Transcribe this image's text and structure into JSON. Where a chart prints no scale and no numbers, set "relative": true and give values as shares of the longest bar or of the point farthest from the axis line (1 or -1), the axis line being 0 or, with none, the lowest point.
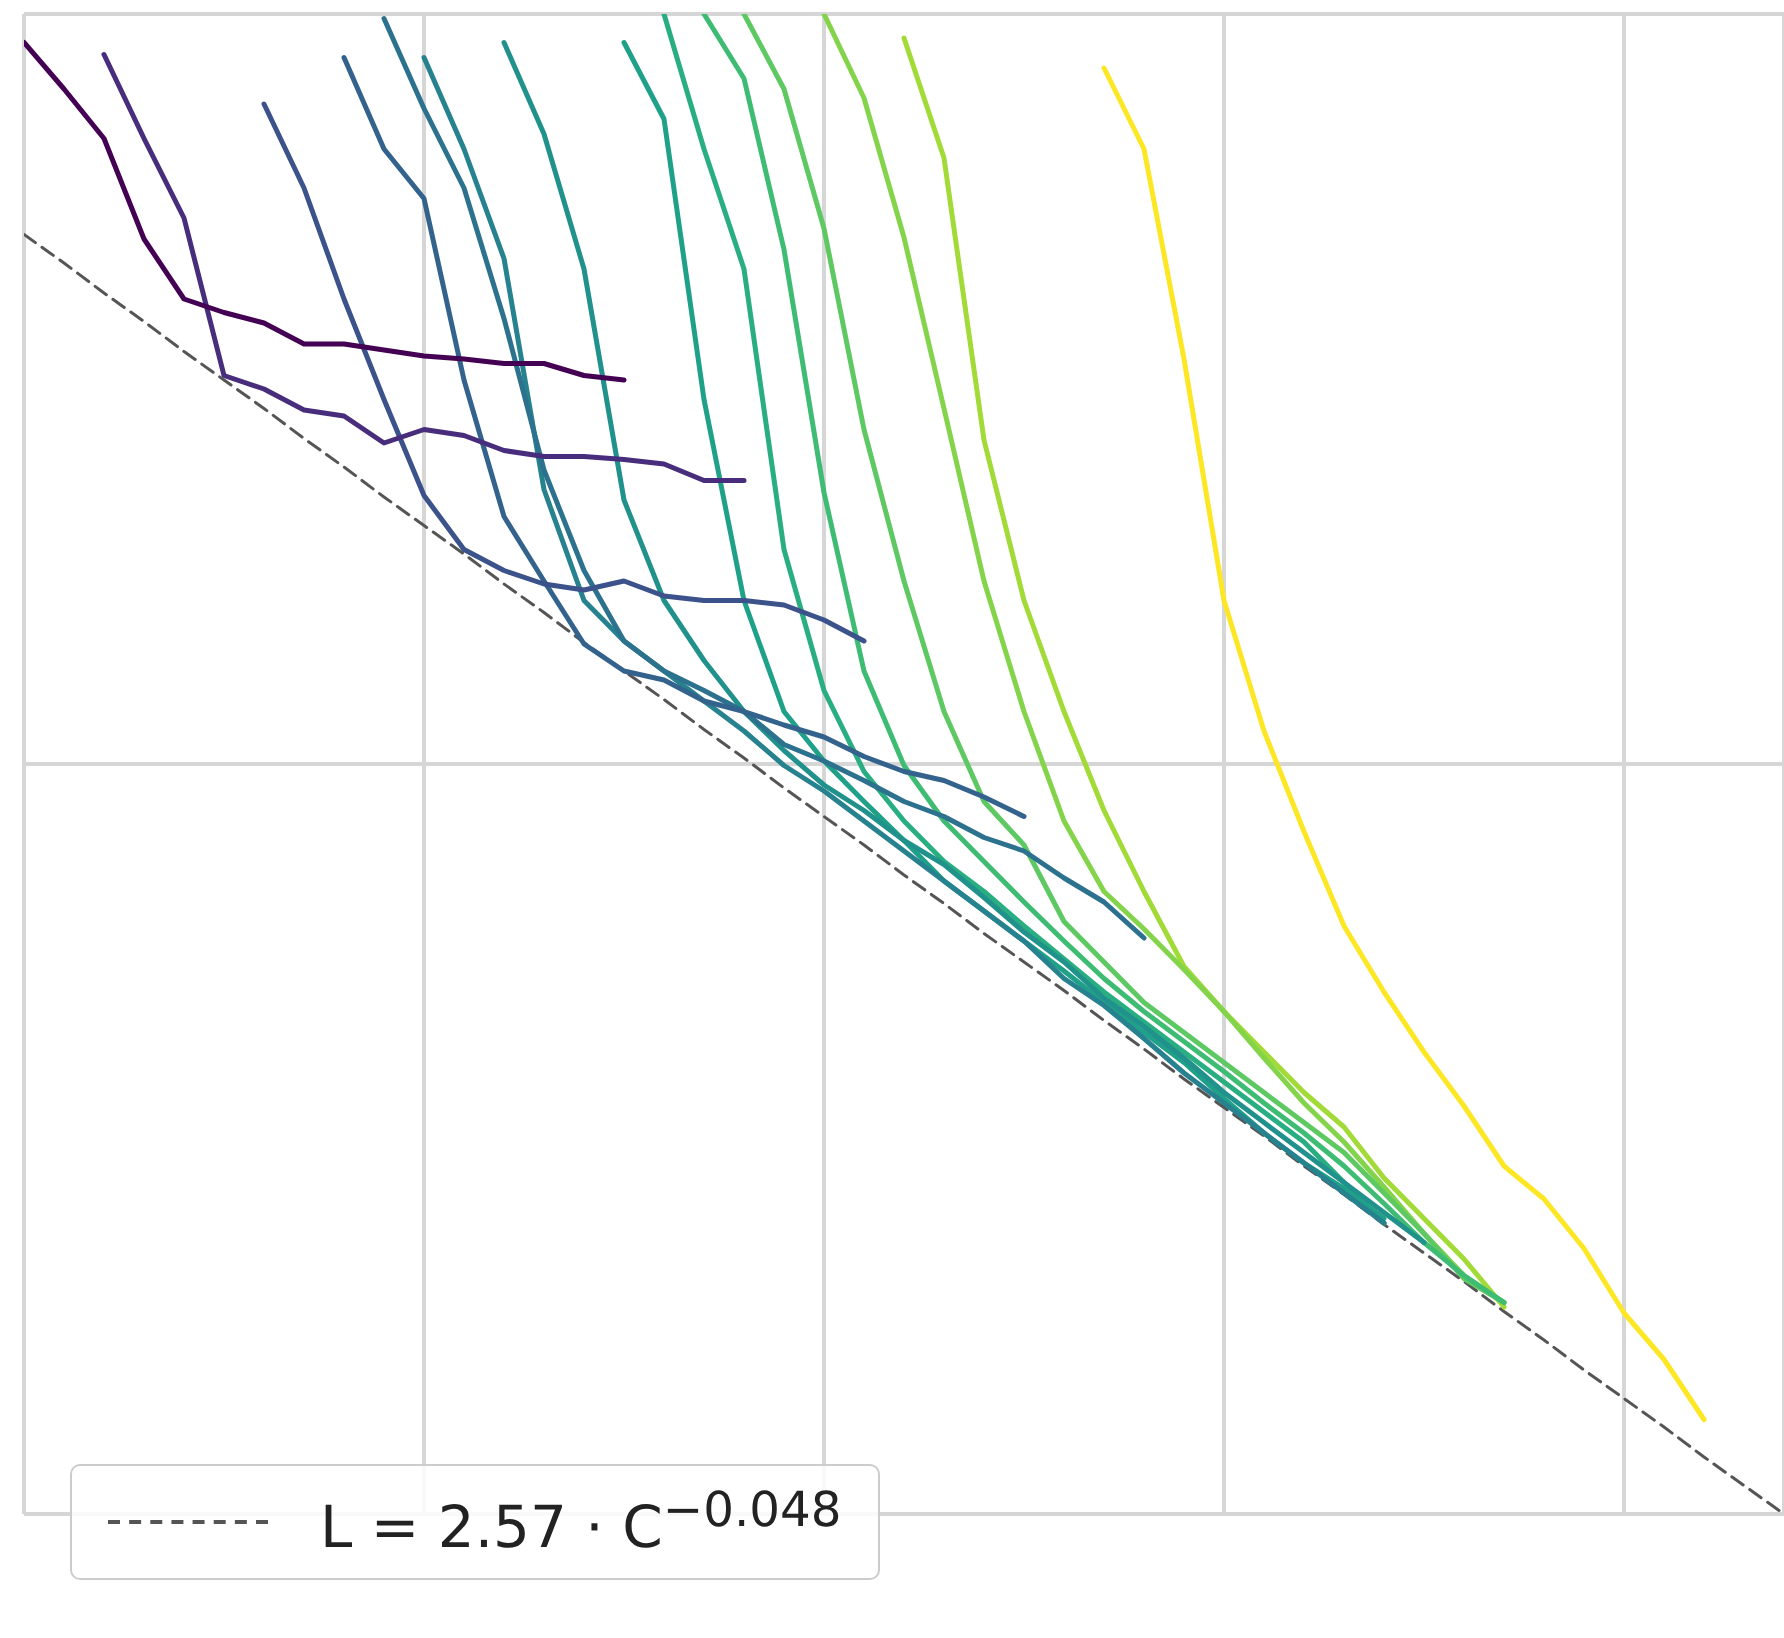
{
  "chart_data": {
    "type": "line",
    "relative": true,
    "grid": true,
    "tick_labels": false,
    "legend": "bottom left",
    "categories": [
      null,
      null,
      null,
      null,
      null,
      null,
      null,
      null,
      null,
      null,
      null,
      null,
      null,
      null,
      null,
      null,
      null,
      null,
      null,
      null,
      null,
      null,
      null,
      null,
      null,
      null,
      null,
      null,
      null,
      null,
      null,
      null,
      null,
      null,
      null,
      null,
      null,
      null,
      null,
      null,
      null,
      null,
      null,
      null,
      null
    ],
    "series": [
      {
        "color": "#440154",
        "values": [
          0.981,
          0.95,
          0.917,
          0.85,
          0.81,
          0.801,
          0.794,
          0.78,
          0.78,
          0.776,
          0.772,
          0.77,
          0.767,
          0.767,
          0.759,
          0.756,
          null,
          null,
          null,
          null,
          null,
          null,
          null,
          null,
          null,
          null,
          null,
          null,
          null,
          null,
          null,
          null,
          null,
          null,
          null,
          null,
          null,
          null,
          null,
          null,
          null,
          null,
          null,
          null,
          null
        ]
      },
      {
        "color": "#472d7b",
        "values": [
          null,
          null,
          0.973,
          0.917,
          0.864,
          0.759,
          0.75,
          0.736,
          0.732,
          0.714,
          0.723,
          0.719,
          0.709,
          0.705,
          0.705,
          0.703,
          0.7,
          0.689,
          0.689,
          null,
          null,
          null,
          null,
          null,
          null,
          null,
          null,
          null,
          null,
          null,
          null,
          null,
          null,
          null,
          null,
          null,
          null,
          null,
          null,
          null,
          null,
          null,
          null,
          null,
          null
        ]
      },
      {
        "color": "#3b528b",
        "values": [
          null,
          null,
          null,
          null,
          null,
          null,
          0.94,
          0.884,
          0.81,
          0.743,
          0.679,
          0.643,
          0.629,
          0.62,
          0.616,
          0.622,
          0.612,
          0.609,
          0.609,
          0.606,
          0.596,
          0.582,
          null,
          null,
          null,
          null,
          null,
          null,
          null,
          null,
          null,
          null,
          null,
          null,
          null,
          null,
          null,
          null,
          null,
          null,
          null,
          null,
          null,
          null,
          null
        ]
      },
      {
        "color": "#33638d",
        "values": [
          null,
          null,
          null,
          null,
          null,
          null,
          null,
          null,
          0.971,
          0.91,
          0.877,
          0.756,
          0.665,
          0.622,
          0.58,
          0.562,
          0.556,
          0.542,
          0.535,
          0.526,
          0.518,
          0.505,
          0.495,
          0.489,
          0.478,
          0.465,
          null,
          null,
          null,
          null,
          null,
          null,
          null,
          null,
          null,
          null,
          null,
          null,
          null,
          null,
          null,
          null,
          null,
          null,
          null
        ]
      },
      {
        "color": "#2c728e",
        "values": [
          null,
          null,
          null,
          null,
          null,
          null,
          null,
          null,
          null,
          0.997,
          0.937,
          0.884,
          0.797,
          0.696,
          0.629,
          0.582,
          0.562,
          0.549,
          0.535,
          0.513,
          0.502,
          0.489,
          0.475,
          0.465,
          0.451,
          0.442,
          0.424,
          0.408,
          0.384,
          null,
          null,
          null,
          null,
          null,
          null,
          null,
          null,
          null,
          null,
          null,
          null,
          null,
          null,
          null,
          null
        ]
      },
      {
        "color": "#26828e",
        "values": [
          null,
          null,
          null,
          null,
          null,
          null,
          null,
          null,
          null,
          null,
          0.971,
          0.91,
          0.837,
          0.683,
          0.609,
          0.582,
          0.562,
          0.542,
          0.522,
          0.499,
          0.482,
          0.462,
          0.442,
          0.422,
          0.402,
          0.382,
          0.357,
          0.339,
          0.317,
          0.294,
          0.274,
          0.254,
          0.234,
          0.214,
          0.194,
          null,
          null,
          null,
          null,
          null,
          null,
          null,
          null,
          null,
          null
        ]
      },
      {
        "color": "#21918c",
        "values": [
          null,
          null,
          null,
          null,
          null,
          null,
          null,
          null,
          null,
          null,
          null,
          null,
          0.981,
          0.92,
          0.83,
          0.676,
          0.609,
          0.569,
          0.535,
          0.509,
          0.486,
          0.469,
          0.449,
          0.433,
          0.411,
          0.388,
          0.368,
          0.344,
          0.325,
          0.304,
          0.281,
          0.261,
          0.241,
          0.221,
          0.201,
          0.181,
          null,
          null,
          null,
          null,
          null,
          null,
          null,
          null,
          null
        ]
      },
      {
        "color": "#1fa088",
        "values": [
          null,
          null,
          null,
          null,
          null,
          null,
          null,
          null,
          null,
          null,
          null,
          null,
          null,
          null,
          null,
          0.981,
          0.93,
          0.743,
          0.609,
          0.535,
          0.502,
          0.475,
          0.449,
          0.422,
          0.402,
          0.382,
          0.362,
          0.341,
          0.321,
          0.301,
          0.277,
          0.254,
          0.234,
          0.217,
          0.197,
          null,
          null,
          null,
          null,
          null,
          null,
          null,
          null,
          null,
          null
        ]
      },
      {
        "color": "#28ae80",
        "values": [
          null,
          null,
          null,
          null,
          null,
          null,
          null,
          null,
          null,
          null,
          null,
          null,
          null,
          null,
          null,
          null,
          1.0,
          0.91,
          0.83,
          0.643,
          0.549,
          0.495,
          0.462,
          0.435,
          0.415,
          0.392,
          0.37,
          0.348,
          0.328,
          0.308,
          0.288,
          0.268,
          0.248,
          0.221,
          0.194,
          null,
          null,
          null,
          null,
          null,
          null,
          null,
          null,
          null,
          null
        ]
      },
      {
        "color": "#3fbc73",
        "values": [
          null,
          null,
          null,
          null,
          null,
          null,
          null,
          null,
          null,
          null,
          null,
          null,
          null,
          null,
          null,
          null,
          null,
          1.0,
          0.957,
          0.843,
          0.681,
          0.562,
          0.499,
          0.462,
          0.435,
          0.408,
          0.382,
          0.357,
          0.335,
          0.315,
          0.295,
          0.274,
          0.254,
          0.232,
          0.207,
          0.181,
          0.159,
          0.141,
          null,
          null,
          null,
          null,
          null,
          null,
          null
        ]
      },
      {
        "color": "#5ec962",
        "values": [
          null,
          null,
          null,
          null,
          null,
          null,
          null,
          null,
          null,
          null,
          null,
          null,
          null,
          null,
          null,
          null,
          null,
          null,
          1.0,
          0.95,
          0.857,
          0.723,
          0.622,
          0.535,
          0.475,
          0.446,
          0.395,
          0.368,
          0.341,
          0.321,
          0.301,
          0.281,
          0.261,
          0.241,
          0.214,
          0.187,
          0.157,
          0.141,
          null,
          null,
          null,
          null,
          null,
          null,
          null
        ]
      },
      {
        "color": "#84d44b",
        "values": [
          null,
          null,
          null,
          null,
          null,
          null,
          null,
          null,
          null,
          null,
          null,
          null,
          null,
          null,
          null,
          null,
          null,
          null,
          null,
          null,
          1.0,
          0.944,
          0.851,
          0.737,
          0.622,
          0.535,
          0.462,
          0.415,
          0.39,
          0.363,
          0.335,
          0.304,
          0.274,
          0.248,
          0.218,
          0.187,
          0.159,
          0.141,
          null,
          null,
          null,
          null,
          null,
          null,
          null
        ]
      },
      {
        "color": "#a2da37",
        "values": [
          null,
          null,
          null,
          null,
          null,
          null,
          null,
          null,
          null,
          null,
          null,
          null,
          null,
          null,
          null,
          null,
          null,
          null,
          null,
          null,
          null,
          null,
          0.984,
          0.904,
          0.716,
          0.609,
          0.535,
          0.469,
          0.415,
          0.365,
          0.335,
          0.308,
          0.281,
          0.258,
          0.224,
          0.197,
          0.17,
          0.138,
          null,
          null,
          null,
          null,
          null,
          null,
          null
        ]
      },
      {
        "color": "#fde725",
        "values": [
          null,
          null,
          null,
          null,
          null,
          null,
          null,
          null,
          null,
          null,
          null,
          null,
          null,
          null,
          null,
          null,
          null,
          null,
          null,
          null,
          null,
          null,
          null,
          null,
          null,
          null,
          null,
          0.964,
          0.91,
          0.77,
          0.609,
          0.522,
          0.455,
          0.392,
          0.348,
          0.308,
          0.272,
          0.232,
          0.21,
          0.177,
          0.134,
          0.103,
          0.063,
          null,
          null
        ]
      },
      {
        "name": "L = 2.57 · C$^{−0.048}$",
        "color": "#555555",
        "line_style": "dashed",
        "values": [
          0.853,
          0.834,
          0.814,
          0.795,
          0.775,
          0.756,
          0.737,
          0.717,
          0.698,
          0.678,
          0.659,
          0.64,
          0.62,
          0.601,
          0.581,
          0.562,
          0.543,
          0.523,
          0.504,
          0.484,
          0.465,
          0.446,
          0.426,
          0.407,
          0.387,
          0.368,
          0.349,
          0.329,
          0.31,
          0.29,
          0.271,
          0.252,
          0.232,
          0.213,
          0.193,
          0.174,
          0.155,
          0.135,
          0.116,
          0.096,
          0.077,
          0.058,
          0.038,
          0.019,
          0.0
        ]
      }
    ]
  }
}
